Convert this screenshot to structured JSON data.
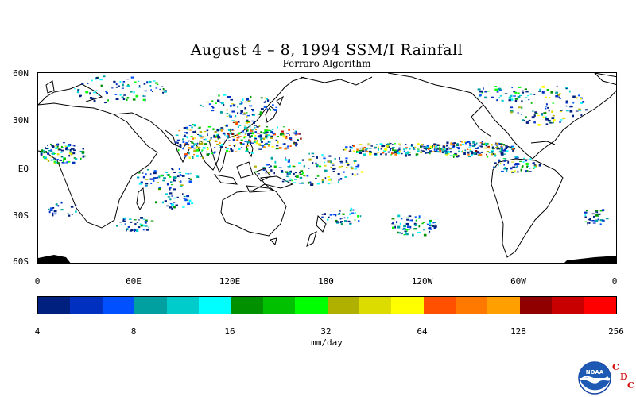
{
  "title": "August 4 – 8, 1994 SSM/I Rainfall",
  "subtitle": "Ferraro Algorithm",
  "lat_labels": [
    "60N",
    "30N",
    "EQ",
    "30S",
    "60S"
  ],
  "lon_labels": [
    "0",
    "60E",
    "120E",
    "180",
    "120W",
    "60W",
    "0"
  ],
  "colorbar": {
    "colors": [
      "#00207f",
      "#0030c0",
      "#0050ff",
      "#00a0a0",
      "#00cccc",
      "#00ffff",
      "#009000",
      "#00c000",
      "#00ff00",
      "#b0b000",
      "#dcdc00",
      "#ffff00",
      "#ff5000",
      "#ff7800",
      "#ffa000",
      "#900000",
      "#c80000",
      "#ff0000"
    ],
    "tick_labels": [
      "4",
      "8",
      "16",
      "32",
      "64",
      "128",
      "256"
    ]
  },
  "units": "mm/day",
  "logo": {
    "name": "NOAA",
    "text": "NOAA"
  },
  "credit": {
    "c1": "C",
    "d": "D",
    "c2": "C"
  }
}
